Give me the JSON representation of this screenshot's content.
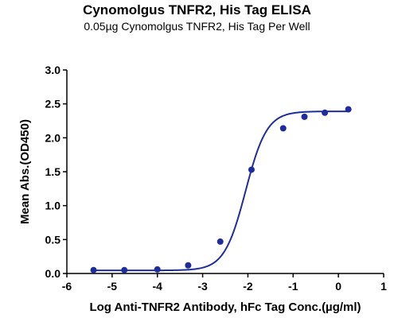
{
  "chart_data": {
    "type": "scatter",
    "title": "Cynomolgus TNFR2, His Tag ELISA",
    "subtitle": "0.05µg Cynomolgus TNFR2, His Tag Per Well",
    "xlabel": "Log Anti-TNFR2 Antibody, hFc Tag Conc.(µg/ml)",
    "ylabel": "Mean Abs.(OD450)",
    "xlim": [
      -6,
      1
    ],
    "ylim": [
      0,
      3.0
    ],
    "x_ticks": [
      "-6",
      "-5",
      "-4",
      "-3",
      "-2",
      "-1",
      "0",
      "1"
    ],
    "y_ticks": [
      "0.0",
      "0.5",
      "1.0",
      "1.5",
      "2.0",
      "2.5",
      "3.0"
    ],
    "grid": false,
    "color": "#1f2d9c",
    "series": [
      {
        "x": [
          -5.41,
          -4.73,
          -4.0,
          -3.32,
          -2.61,
          -1.92,
          -1.22,
          -0.75,
          -0.3,
          0.22
        ],
        "y": [
          0.05,
          0.05,
          0.06,
          0.12,
          0.47,
          1.53,
          2.14,
          2.31,
          2.37,
          2.42
        ],
        "fit": "4PL sigmoid"
      }
    ]
  }
}
